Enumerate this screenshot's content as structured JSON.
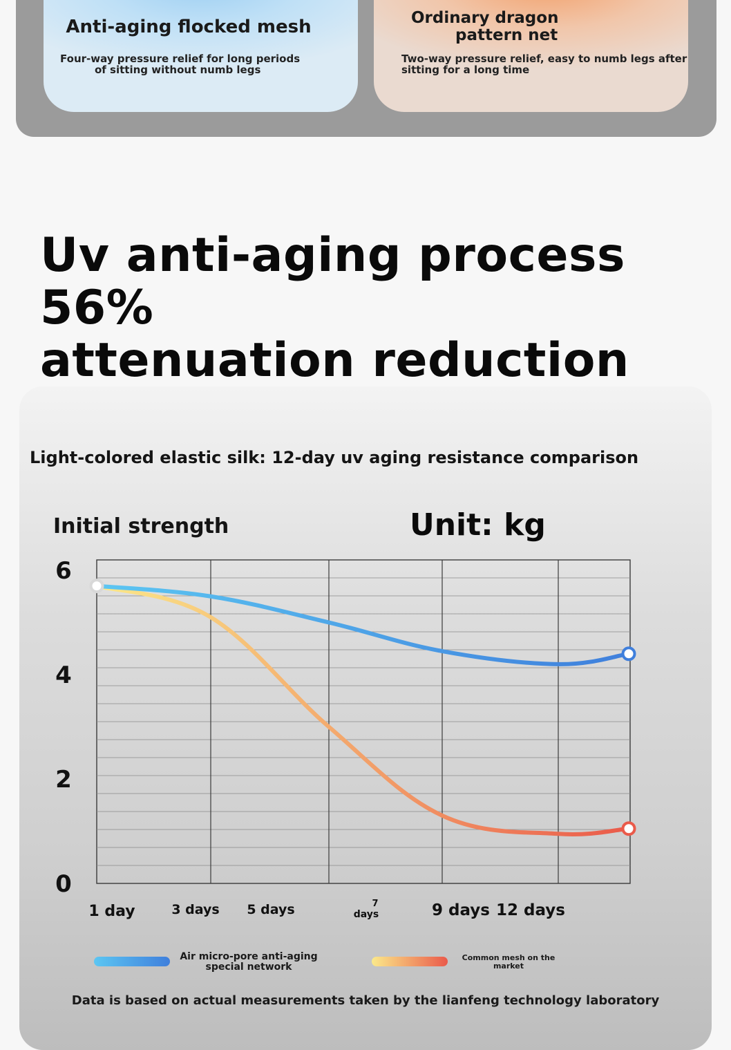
{
  "comparison": {
    "left": {
      "title": "Anti-aging flocked mesh",
      "desc_line1": "Four-way pressure relief for long periods",
      "desc_line2": "of sitting without numb legs"
    },
    "right": {
      "title_line1": "Ordinary dragon",
      "title_line2": "pattern net",
      "desc_line1": "Two-way pressure relief, easy to numb legs after",
      "desc_line2": "sitting for a long time"
    }
  },
  "headline": {
    "line1": "Uv anti-aging process 56%",
    "line2": "attenuation reduction"
  },
  "chart_data": {
    "type": "line",
    "title": "Light-colored elastic silk: 12-day uv aging resistance comparison",
    "ylabel": "Initial strength",
    "unit": "Unit: kg",
    "ylim": [
      0,
      6
    ],
    "y_ticks": [
      "0",
      "2",
      "4",
      "6"
    ],
    "x_tick_labels": [
      "1 day",
      "3 days",
      "5 days",
      "7 days",
      "9 days",
      "12 days"
    ],
    "x": [
      0,
      1,
      2,
      3,
      4,
      5
    ],
    "grid": true,
    "legend_position": "bottom",
    "series": [
      {
        "name": "Air micro-pore anti-aging special network",
        "values": [
          5.7,
          5.5,
          5.0,
          4.45,
          4.2,
          4.4
        ],
        "color_start": "#5cc6f2",
        "color_end": "#3f7fdc"
      },
      {
        "name": "Common mesh on the market",
        "values": [
          5.7,
          5.1,
          3.0,
          1.3,
          0.95,
          1.05
        ],
        "color_start": "#fbe98a",
        "color_end": "#ea5a4a"
      }
    ],
    "note": "Data is based on actual measurements taken by the lianfeng technology laboratory"
  }
}
